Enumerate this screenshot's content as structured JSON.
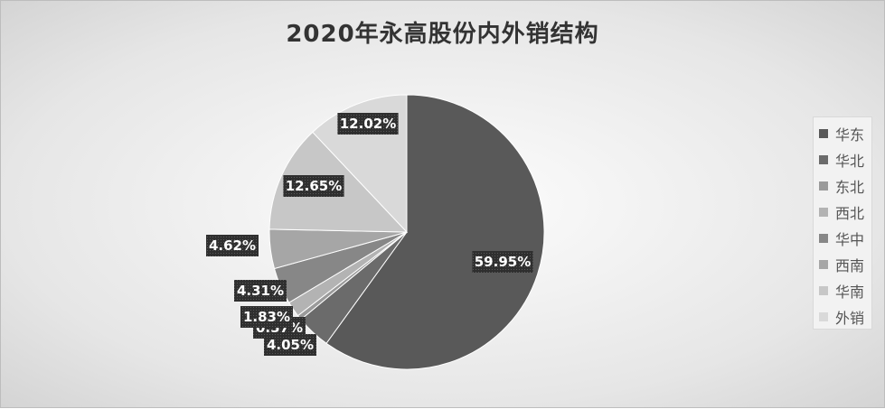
{
  "chart_data": {
    "type": "pie",
    "title": "2020年永高股份内外销结构",
    "slices": [
      {
        "name": "华东",
        "value": 59.95,
        "label": "59.95%",
        "color": "#595959"
      },
      {
        "name": "华北",
        "value": 4.05,
        "label": "4.05%",
        "color": "#6b6b6b"
      },
      {
        "name": "东北",
        "value": 0.57,
        "label": "0.57%",
        "color": "#9a9a9a"
      },
      {
        "name": "西北",
        "value": 1.83,
        "label": "1.83%",
        "color": "#b3b3b3"
      },
      {
        "name": "华中",
        "value": 4.31,
        "label": "4.31%",
        "color": "#878787"
      },
      {
        "name": "西南",
        "value": 4.62,
        "label": "4.62%",
        "color": "#a6a6a6"
      },
      {
        "name": "华南",
        "value": 12.65,
        "label": "12.65%",
        "color": "#c7c7c7"
      },
      {
        "name": "外销",
        "value": 12.02,
        "label": "12.02%",
        "color": "#d9d9d9"
      }
    ],
    "legend_position": "right"
  }
}
